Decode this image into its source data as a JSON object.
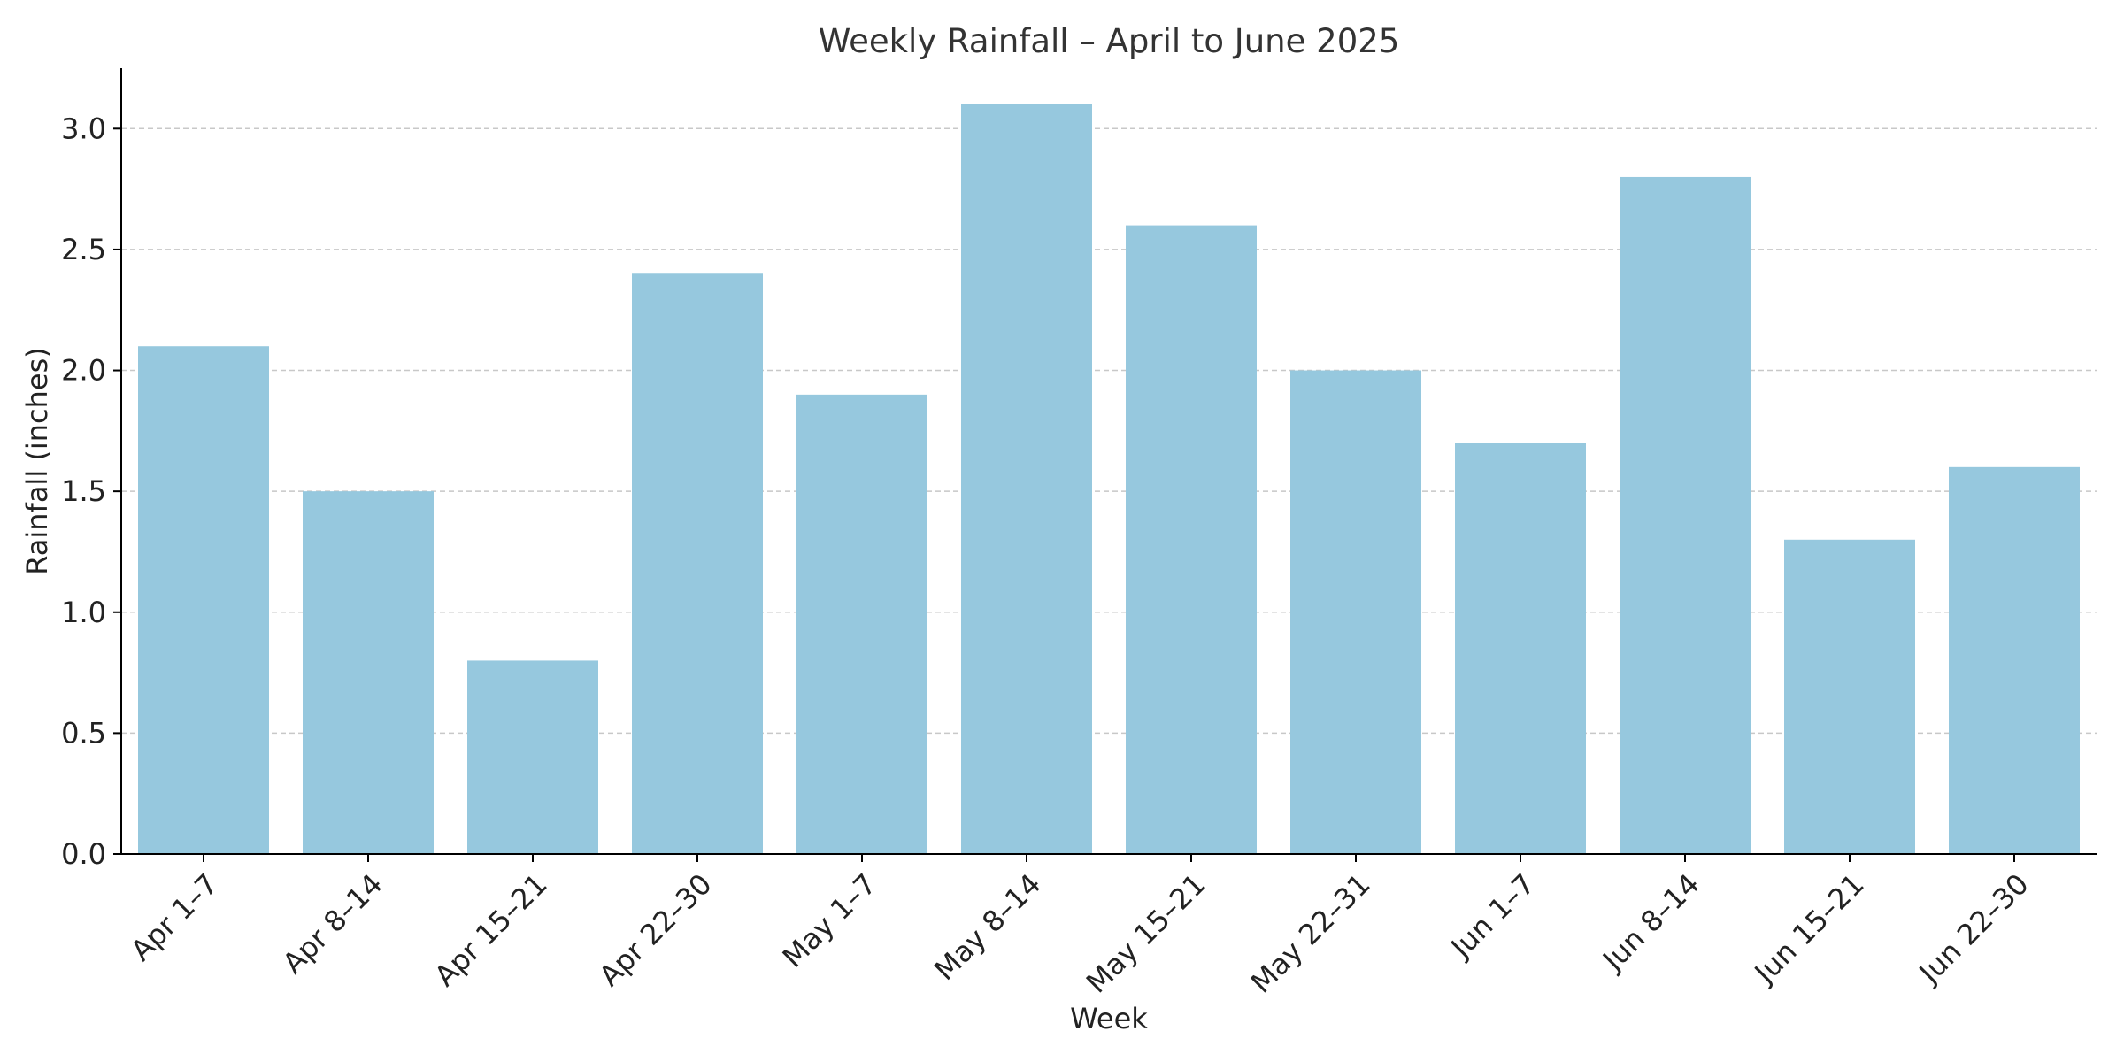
{
  "chart_data": {
    "type": "bar",
    "title": "Weekly Rainfall – April to June 2025",
    "xlabel": "Week",
    "ylabel": "Rainfall (inches)",
    "categories": [
      "Apr 1–7",
      "Apr 8–14",
      "Apr 15–21",
      "Apr 22–30",
      "May 1–7",
      "May 8–14",
      "May 15–21",
      "May 22–31",
      "Jun 1–7",
      "Jun 8–14",
      "Jun 15–21",
      "Jun 22–30"
    ],
    "values": [
      2.1,
      1.5,
      0.8,
      2.4,
      1.9,
      3.1,
      2.6,
      2.0,
      1.7,
      2.8,
      1.3,
      1.6
    ],
    "ylim": [
      0,
      3.25
    ],
    "yticks": [
      "0.0",
      "0.5",
      "1.0",
      "1.5",
      "2.0",
      "2.5",
      "3.0"
    ],
    "grid": "y-dashed",
    "bar_color": "#96c8de"
  }
}
